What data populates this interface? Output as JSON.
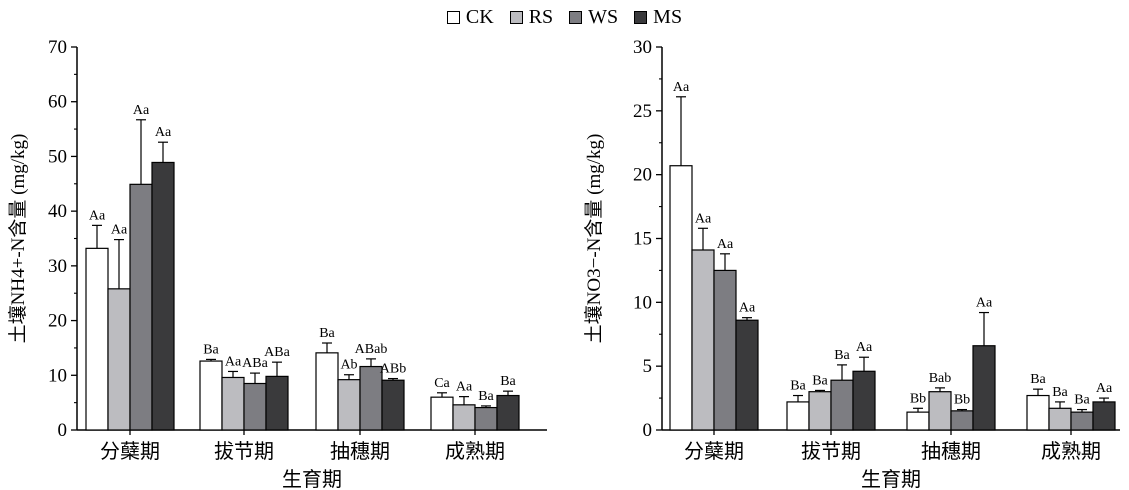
{
  "legend": [
    {
      "label": "CK",
      "color": "#ffffff"
    },
    {
      "label": "RS",
      "color": "#bcbcc0"
    },
    {
      "label": "WS",
      "color": "#7d7d82"
    },
    {
      "label": "MS",
      "color": "#3a3a3c"
    }
  ],
  "chart_data": [
    {
      "type": "bar",
      "categories": [
        "分蘖期",
        "拔节期",
        "抽穗期",
        "成熟期"
      ],
      "xlabel": "生育期",
      "ylabel": "土壤NH4+-N含量 (mg/kg)",
      "ylim": [
        0,
        70
      ],
      "yticks": [
        0,
        10,
        20,
        30,
        40,
        50,
        60,
        70
      ],
      "series": [
        {
          "name": "CK",
          "values": [
            33.2,
            12.6,
            14.1,
            6.0
          ],
          "errors": [
            4.2,
            0.3,
            1.8,
            0.8
          ],
          "labels": [
            "Aa",
            "Ba",
            "Ba",
            "Ca"
          ]
        },
        {
          "name": "RS",
          "values": [
            25.8,
            9.6,
            9.2,
            4.6
          ],
          "errors": [
            9.0,
            1.1,
            0.9,
            1.5
          ],
          "labels": [
            "Aa",
            "Aa",
            "Ab",
            "Aa"
          ]
        },
        {
          "name": "WS",
          "values": [
            44.9,
            8.5,
            11.6,
            4.1
          ],
          "errors": [
            11.8,
            1.9,
            1.4,
            0.3
          ],
          "labels": [
            "Aa",
            "ABa",
            "ABab",
            "Ba"
          ]
        },
        {
          "name": "MS",
          "values": [
            48.9,
            9.8,
            9.1,
            6.3
          ],
          "errors": [
            3.7,
            2.6,
            0.3,
            0.8
          ],
          "labels": [
            "Aa",
            "ABa",
            "ABb",
            "Ba"
          ]
        }
      ]
    },
    {
      "type": "bar",
      "categories": [
        "分蘖期",
        "拔节期",
        "抽穗期",
        "成熟期"
      ],
      "xlabel": "生育期",
      "ylabel": "土壤NO3−-N含量 (mg/kg)",
      "ylim": [
        0,
        30
      ],
      "yticks": [
        0,
        5,
        10,
        15,
        20,
        25,
        30
      ],
      "series": [
        {
          "name": "CK",
          "values": [
            20.7,
            2.2,
            1.4,
            2.7
          ],
          "errors": [
            5.4,
            0.5,
            0.3,
            0.5
          ],
          "labels": [
            "Aa",
            "Ba",
            "Bb",
            "Ba"
          ]
        },
        {
          "name": "RS",
          "values": [
            14.1,
            3.0,
            3.0,
            1.7
          ],
          "errors": [
            1.7,
            0.1,
            0.3,
            0.5
          ],
          "labels": [
            "Aa",
            "Ba",
            "Bab",
            "Ba"
          ]
        },
        {
          "name": "WS",
          "values": [
            12.5,
            3.9,
            1.5,
            1.4
          ],
          "errors": [
            1.3,
            1.2,
            0.1,
            0.2
          ],
          "labels": [
            "Aa",
            "Ba",
            "Bb",
            "Ba"
          ]
        },
        {
          "name": "MS",
          "values": [
            8.6,
            4.6,
            6.6,
            2.2
          ],
          "errors": [
            0.2,
            1.1,
            2.6,
            0.3
          ],
          "labels": [
            "Aa",
            "Aa",
            "Aa",
            "Aa"
          ]
        }
      ]
    }
  ]
}
